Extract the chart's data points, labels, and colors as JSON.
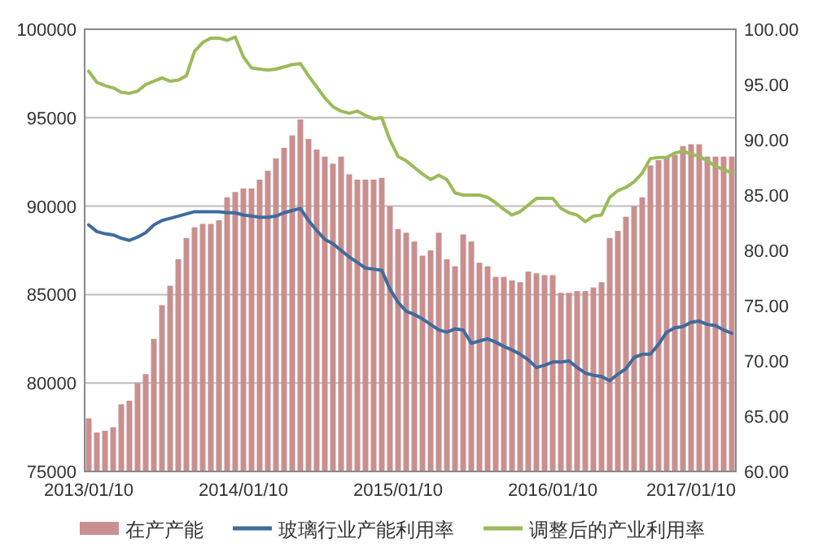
{
  "chart_data": {
    "type": "bar",
    "categories": [
      "2013/01/10",
      null,
      null,
      null,
      null,
      null,
      null,
      null,
      null,
      null,
      null,
      null,
      null,
      null,
      null,
      null,
      null,
      null,
      null,
      "2014/01/10",
      null,
      null,
      null,
      null,
      null,
      null,
      null,
      null,
      null,
      null,
      null,
      null,
      null,
      null,
      null,
      null,
      null,
      null,
      "2015/01/10",
      null,
      null,
      null,
      null,
      null,
      null,
      null,
      null,
      null,
      null,
      null,
      null,
      null,
      null,
      null,
      null,
      null,
      null,
      "2016/01/10",
      null,
      null,
      null,
      null,
      null,
      null,
      null,
      null,
      null,
      null,
      null,
      null,
      null,
      null,
      null,
      null,
      "2017/01/10",
      null,
      null,
      null,
      null,
      null
    ],
    "series": [
      {
        "name": "在产产能",
        "color": "#c98f8f",
        "values": [
          78000,
          77200,
          77300,
          77500,
          78800,
          79000,
          80000,
          80500,
          82500,
          84400,
          85500,
          87000,
          88200,
          88800,
          89000,
          89000,
          89200,
          90500,
          90800,
          91000,
          91000,
          91500,
          92000,
          92700,
          93300,
          94000,
          94900,
          93800,
          93200,
          92800,
          92400,
          92800,
          91800,
          91500,
          91500,
          91500,
          91600,
          90000,
          88700,
          88500,
          88000,
          87200,
          87500,
          88500,
          87000,
          86600,
          88400,
          88000,
          86800,
          86600,
          86000,
          86000,
          85800,
          85700,
          86300,
          86200,
          86100,
          86100,
          85100,
          85100,
          85200,
          85200,
          85400,
          85700,
          88200,
          88600,
          89400,
          90000,
          90500,
          92300,
          92600,
          92800,
          92900,
          93400,
          93500,
          93500,
          92800,
          92800,
          92800,
          92800
        ]
      },
      {
        "name": "玻璃行业产能利用率",
        "type": "line",
        "axis": "y2",
        "color": "#3f6b9e",
        "values": [
          82.3,
          81.7,
          81.5,
          81.4,
          81.1,
          80.9,
          81.2,
          81.6,
          82.3,
          82.7,
          82.9,
          83.1,
          83.3,
          83.5,
          83.5,
          83.5,
          83.5,
          83.4,
          83.4,
          83.2,
          83.1,
          83.0,
          83.0,
          83.1,
          83.4,
          83.6,
          83.8,
          82.7,
          81.8,
          81.0,
          80.6,
          80.0,
          79.4,
          78.9,
          78.4,
          78.3,
          78.2,
          76.5,
          75.3,
          74.5,
          74.2,
          73.8,
          73.3,
          72.8,
          72.6,
          72.9,
          72.8,
          71.6,
          71.8,
          72.0,
          71.7,
          71.3,
          71.0,
          70.6,
          70.1,
          69.4,
          69.6,
          69.9,
          69.9,
          70.0,
          69.4,
          68.9,
          68.7,
          68.6,
          68.2,
          68.8,
          69.3,
          70.3,
          70.6,
          70.6,
          71.5,
          72.6,
          73.0,
          73.1,
          73.5,
          73.6,
          73.3,
          73.2,
          72.8,
          72.5
        ]
      },
      {
        "name": "调整后的产业利用率",
        "type": "line",
        "axis": "y2",
        "color": "#9bbb59",
        "values": [
          96.2,
          95.2,
          94.9,
          94.7,
          94.3,
          94.2,
          94.4,
          95.0,
          95.3,
          95.6,
          95.3,
          95.4,
          95.8,
          98.0,
          98.8,
          99.2,
          99.2,
          99.0,
          99.3,
          97.5,
          96.5,
          96.4,
          96.3,
          96.4,
          96.6,
          96.8,
          96.9,
          95.8,
          94.8,
          93.8,
          93.0,
          92.6,
          92.4,
          92.6,
          92.2,
          91.9,
          92.0,
          90.0,
          88.5,
          88.1,
          87.5,
          86.9,
          86.4,
          86.8,
          86.4,
          85.2,
          85.0,
          85.0,
          85.0,
          84.8,
          84.3,
          83.7,
          83.2,
          83.5,
          84.1,
          84.7,
          84.7,
          84.7,
          83.8,
          83.4,
          83.2,
          82.6,
          83.1,
          83.2,
          84.8,
          85.4,
          85.7,
          86.2,
          87.0,
          88.3,
          88.4,
          88.4,
          88.8,
          89.0,
          88.7,
          88.5,
          88.1,
          87.6,
          87.3,
          87.0
        ]
      }
    ],
    "ylim": [
      75000,
      100000
    ],
    "yticks": [
      75000,
      80000,
      85000,
      90000,
      95000,
      100000
    ],
    "y2lim": [
      60,
      100
    ],
    "y2ticks": [
      {
        "value": 60,
        "label": "60.00"
      },
      {
        "value": 65,
        "label": "65.00"
      },
      {
        "value": 70,
        "label": "70.00"
      },
      {
        "value": 75,
        "label": "75.00"
      },
      {
        "value": 80,
        "label": "80.00"
      },
      {
        "value": 85,
        "label": "85.00"
      },
      {
        "value": 90,
        "label": "90.00"
      },
      {
        "value": 95,
        "label": "95.00"
      },
      {
        "value": 100,
        "label": "100.00"
      }
    ],
    "grid": "y",
    "legend": "bottom",
    "marker": "none",
    "line_style": "solid"
  }
}
